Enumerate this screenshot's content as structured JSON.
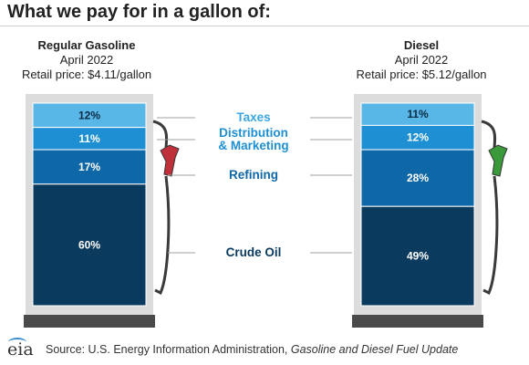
{
  "title": "What we pay for in a gallon of:",
  "chart_data": {
    "type": "stacked-bar",
    "categories": [
      "Regular Gasoline",
      "Diesel"
    ],
    "subtitles": [
      [
        "April 2022",
        "Retail price: $4.11/gallon"
      ],
      [
        "April 2022",
        "Retail price: $5.12/gallon"
      ]
    ],
    "series": [
      {
        "name": "Taxes",
        "values": [
          12,
          11
        ],
        "color": "#58b7e6"
      },
      {
        "name": "Distribution & Marketing",
        "name_lines": [
          "Distribution",
          "& Marketing"
        ],
        "values": [
          11,
          12
        ],
        "color": "#1e8fd2"
      },
      {
        "name": "Refining",
        "values": [
          17,
          28
        ],
        "color": "#0e67a6"
      },
      {
        "name": "Crude Oil",
        "values": [
          60,
          49
        ],
        "color": "#0a3a5e"
      }
    ],
    "label_colors": {
      "Taxes": "#3aa7e0",
      "Distribution & Marketing": "#1e8fd2",
      "Refining": "#0e67a6",
      "Crude Oil": "#0a3a5e"
    },
    "units": "%",
    "icons": [
      "gas-pump-icon",
      "fuel-nozzle-icon"
    ],
    "nozzle_colors": [
      "#c0303a",
      "#3a9a3a"
    ]
  },
  "footer": {
    "logo_text": "eia",
    "source_prefix": "Source: U.S. Energy Information Administration, ",
    "source_title": "Gasoline and Diesel Fuel Update"
  }
}
